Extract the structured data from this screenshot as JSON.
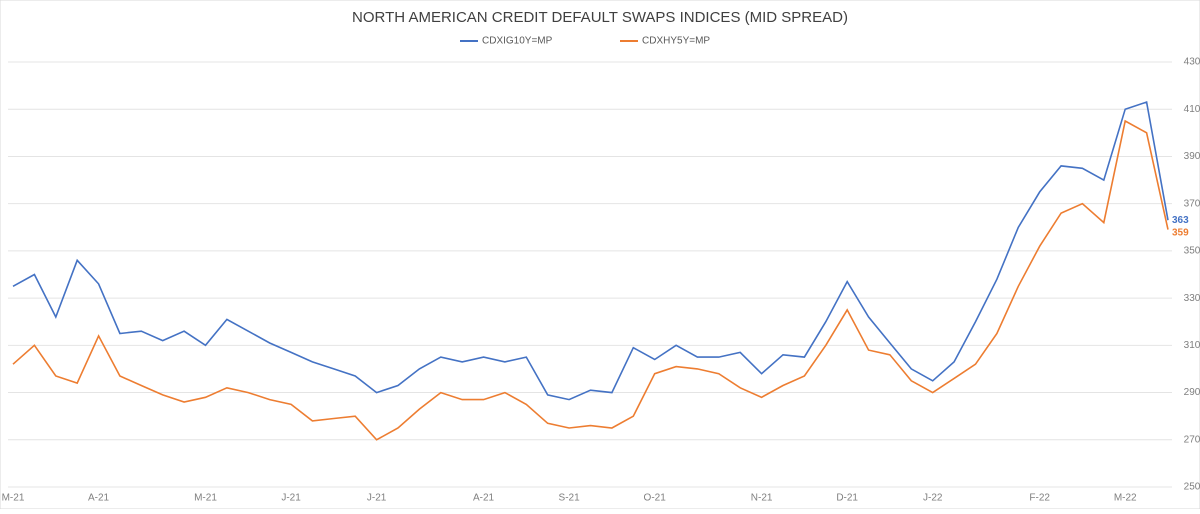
{
  "chart_data": {
    "type": "line",
    "title": "NORTH AMERICAN CREDIT DEFAULT SWAPS INDICES (MID SPREAD)",
    "categories": [
      "M-21",
      null,
      null,
      null,
      "A-21",
      null,
      null,
      null,
      null,
      "M-21",
      null,
      null,
      null,
      "J-21",
      null,
      null,
      null,
      "J-21",
      null,
      null,
      null,
      null,
      "A-21",
      null,
      null,
      null,
      "S-21",
      null,
      null,
      null,
      "O-21",
      null,
      null,
      null,
      null,
      "N-21",
      null,
      null,
      null,
      "D-21",
      null,
      null,
      null,
      "J-22",
      null,
      null,
      null,
      null,
      "F-22",
      null,
      null,
      null,
      "M-22",
      null,
      null
    ],
    "series": [
      {
        "name": "CDXIG10Y=MP",
        "color": "#4472c4",
        "values": [
          335,
          340,
          322,
          346,
          336,
          315,
          316,
          312,
          316,
          310,
          321,
          316,
          311,
          307,
          303,
          300,
          297,
          290,
          293,
          300,
          305,
          303,
          305,
          303,
          305,
          289,
          287,
          291,
          290,
          309,
          304,
          310,
          305,
          305,
          307,
          298,
          306,
          305,
          320,
          337,
          322,
          311,
          300,
          295,
          303,
          320,
          338,
          360,
          375,
          386,
          385,
          380,
          410,
          413,
          363
        ]
      },
      {
        "name": "CDXHY5Y=MP",
        "color": "#ed7d31",
        "values": [
          302,
          310,
          297,
          294,
          314,
          297,
          293,
          289,
          286,
          288,
          292,
          290,
          287,
          285,
          278,
          279,
          280,
          270,
          275,
          283,
          290,
          287,
          287,
          290,
          285,
          277,
          275,
          276,
          275,
          280,
          298,
          301,
          300,
          298,
          292,
          288,
          293,
          297,
          310,
          325,
          308,
          306,
          295,
          290,
          296,
          302,
          315,
          335,
          352,
          366,
          370,
          362,
          405,
          400,
          359
        ]
      }
    ],
    "ylim": [
      250,
      430
    ],
    "yticks": [
      250,
      270,
      290,
      310,
      330,
      350,
      370,
      390,
      410,
      430
    ],
    "grid": true,
    "y_axis_side": "right",
    "legend": "top",
    "label_last": true
  }
}
